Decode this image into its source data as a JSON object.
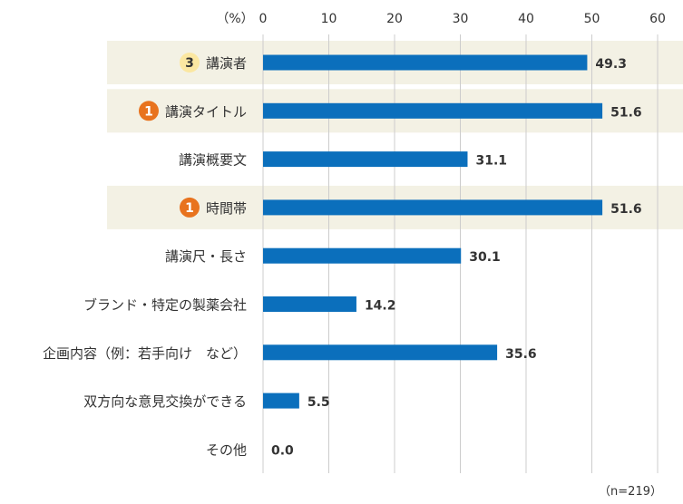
{
  "chart_data": {
    "type": "bar",
    "orientation": "horizontal",
    "unit_label": "（%）",
    "note": "（n=219）",
    "xlim": [
      0,
      60
    ],
    "xticks": [
      "0",
      "10",
      "20",
      "30",
      "40",
      "50",
      "60"
    ],
    "grid": true,
    "bar_color": "#0b6fbc",
    "highlight_color": "#f3f1e4",
    "categories": [
      "講演者",
      "講演タイトル",
      "講演概要文",
      "時間帯",
      "講演尺・長さ",
      "ブランド・特定の製薬会社",
      "企画内容（例：若手向け　など）",
      "双方向な意見交換ができる",
      "その他"
    ],
    "values": [
      49.3,
      51.6,
      31.1,
      51.6,
      30.1,
      14.2,
      35.6,
      5.5,
      0.0
    ],
    "value_labels": [
      "49.3",
      "51.6",
      "31.1",
      "51.6",
      "30.1",
      "14.2",
      "35.6",
      "5.5",
      "0.0"
    ],
    "ranks": [
      {
        "category_index": 0,
        "label": "3",
        "fill": "#fbe7a1",
        "text_color": "#333333"
      },
      {
        "category_index": 1,
        "label": "1",
        "fill": "#e8731e",
        "text_color": "#ffffff"
      },
      {
        "category_index": 3,
        "label": "1",
        "fill": "#e8731e",
        "text_color": "#ffffff"
      }
    ]
  }
}
